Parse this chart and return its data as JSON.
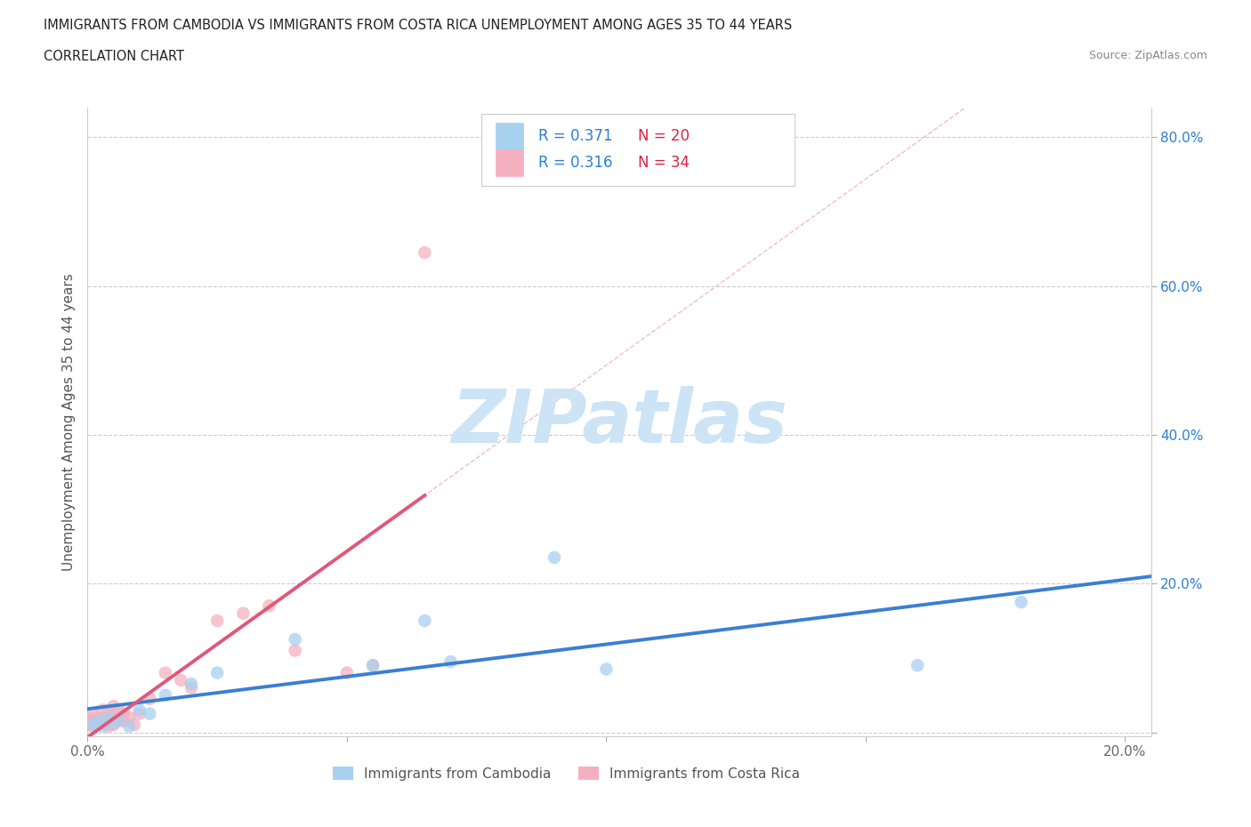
{
  "title_line1": "IMMIGRANTS FROM CAMBODIA VS IMMIGRANTS FROM COSTA RICA UNEMPLOYMENT AMONG AGES 35 TO 44 YEARS",
  "title_line2": "CORRELATION CHART",
  "source": "Source: ZipAtlas.com",
  "ylabel": "Unemployment Among Ages 35 to 44 years",
  "xlim": [
    0.0,
    0.205
  ],
  "ylim": [
    -0.005,
    0.84
  ],
  "xticks": [
    0.0,
    0.05,
    0.1,
    0.15,
    0.2
  ],
  "yticks": [
    0.0,
    0.2,
    0.4,
    0.6,
    0.8
  ],
  "cambodia_color": "#a8d0ef",
  "costa_rica_color": "#f5b0c0",
  "cambodia_line_color": "#3a7fd4",
  "costa_rica_line_color": "#e05878",
  "cambodia_R": 0.371,
  "cambodia_N": 20,
  "costa_rica_R": 0.316,
  "costa_rica_N": 34,
  "R_text_color": "#2a7fd4",
  "N_text_color": "#dd2244",
  "background_color": "#ffffff",
  "watermark_color": "#cce4f5",
  "grid_color": "#cccccc",
  "cambodia_x": [
    0.001,
    0.002,
    0.003,
    0.004,
    0.005,
    0.006,
    0.008,
    0.01,
    0.012,
    0.015,
    0.02,
    0.025,
    0.04,
    0.055,
    0.065,
    0.07,
    0.09,
    0.1,
    0.16,
    0.18
  ],
  "cambodia_y": [
    0.01,
    0.015,
    0.008,
    0.02,
    0.012,
    0.018,
    0.008,
    0.03,
    0.025,
    0.05,
    0.065,
    0.08,
    0.125,
    0.09,
    0.15,
    0.095,
    0.235,
    0.085,
    0.09,
    0.175
  ],
  "costa_rica_x": [
    0.0,
    0.0,
    0.001,
    0.001,
    0.001,
    0.002,
    0.002,
    0.003,
    0.003,
    0.003,
    0.004,
    0.004,
    0.004,
    0.005,
    0.005,
    0.005,
    0.006,
    0.006,
    0.007,
    0.007,
    0.008,
    0.009,
    0.01,
    0.012,
    0.015,
    0.018,
    0.02,
    0.025,
    0.03,
    0.035,
    0.04,
    0.05,
    0.055,
    0.065
  ],
  "costa_rica_y": [
    0.01,
    0.02,
    0.008,
    0.015,
    0.025,
    0.01,
    0.02,
    0.012,
    0.018,
    0.03,
    0.008,
    0.015,
    0.025,
    0.01,
    0.02,
    0.035,
    0.015,
    0.03,
    0.015,
    0.025,
    0.02,
    0.01,
    0.025,
    0.045,
    0.08,
    0.07,
    0.06,
    0.15,
    0.16,
    0.17,
    0.11,
    0.08,
    0.09,
    0.645
  ]
}
